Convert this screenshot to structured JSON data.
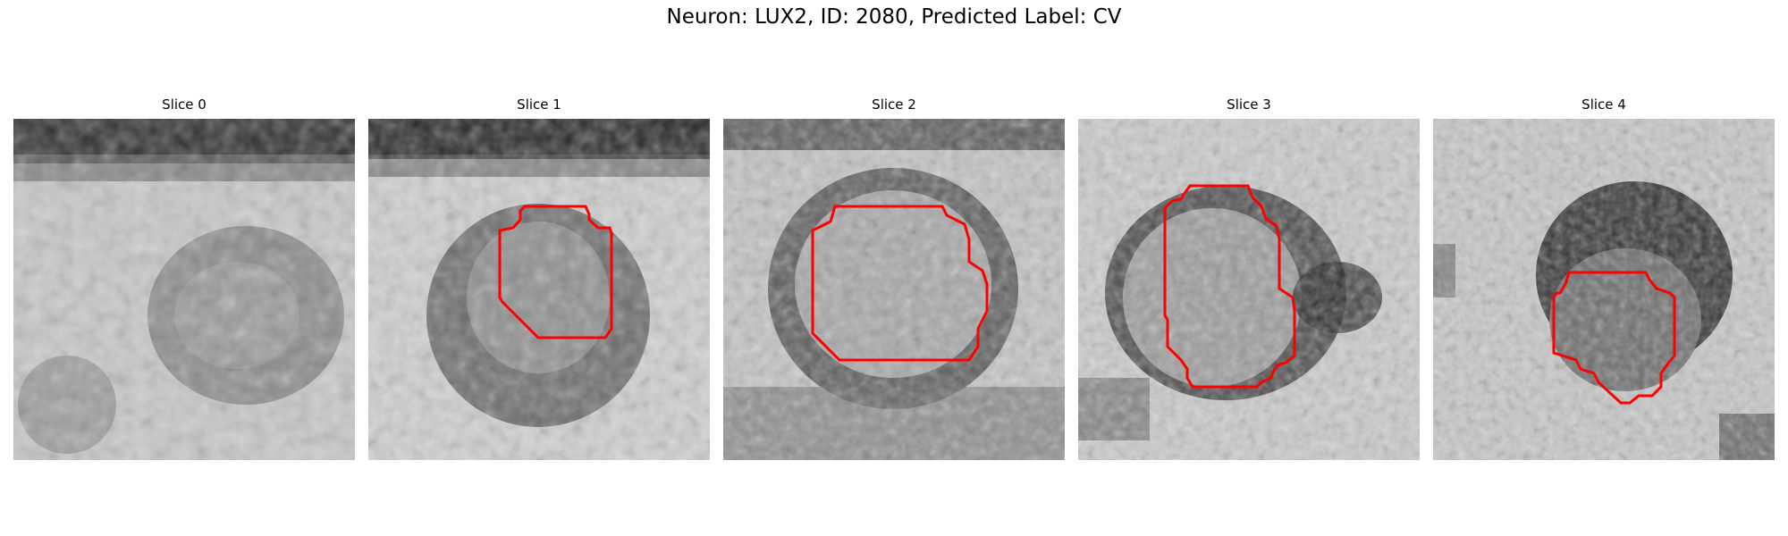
{
  "figure": {
    "title": "Neuron: LUX2, ID: 2080, Predicted Label: CV",
    "contour_color": "#ff0000"
  },
  "panels": [
    {
      "title": "Slice 0",
      "has_contour": false,
      "content": "dark band at top; mottled light texture with roughly circular darker ring in lower middle"
    },
    {
      "title": "Slice 1",
      "has_contour": true,
      "content": "dark band at top; round darker cell outlined by red contour, centered"
    },
    {
      "title": "Slice 2",
      "has_contour": true,
      "content": "round cell with dark boundary, large red contour in center"
    },
    {
      "title": "Slice 3",
      "has_contour": true,
      "content": "light noisy texture; dark ring with red contour slightly left of center"
    },
    {
      "title": "Slice 4",
      "has_contour": true,
      "content": "light noisy texture; dark cell upper right with smaller red contour lower center"
    }
  ]
}
